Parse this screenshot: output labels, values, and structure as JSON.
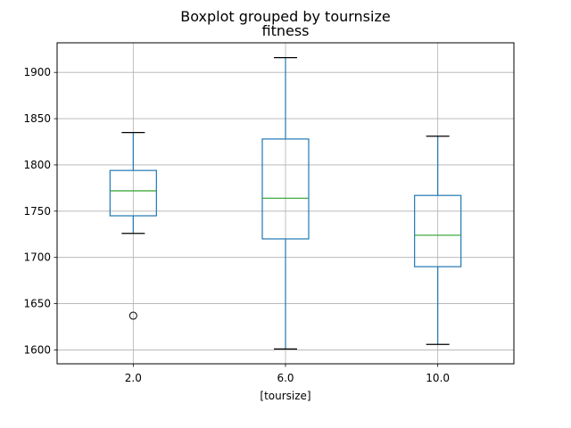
{
  "chart_data": {
    "type": "boxplot",
    "suptitle": "Boxplot grouped by tournsize",
    "title": "fitness",
    "xlabel": "[toursize]",
    "ylabel": "",
    "categories": [
      "2.0",
      "6.0",
      "10.0"
    ],
    "ylim": [
      1585,
      1932
    ],
    "yticks": [
      1600,
      1650,
      1700,
      1750,
      1800,
      1850,
      1900
    ],
    "grid": true,
    "colors": {
      "box": "#1f77b4",
      "median": "#2ca02c",
      "whisker": "#1f77b4",
      "cap": "#000000",
      "grid": "#b0b0b0"
    },
    "boxes": [
      {
        "category": "2.0",
        "whisker_low": 1726,
        "q1": 1745,
        "median": 1772,
        "q3": 1794,
        "whisker_high": 1835,
        "outliers": [
          1637
        ]
      },
      {
        "category": "6.0",
        "whisker_low": 1601,
        "q1": 1720,
        "median": 1764,
        "q3": 1828,
        "whisker_high": 1916,
        "outliers": []
      },
      {
        "category": "10.0",
        "whisker_low": 1606,
        "q1": 1690,
        "median": 1724,
        "q3": 1767,
        "whisker_high": 1831,
        "outliers": []
      }
    ]
  }
}
